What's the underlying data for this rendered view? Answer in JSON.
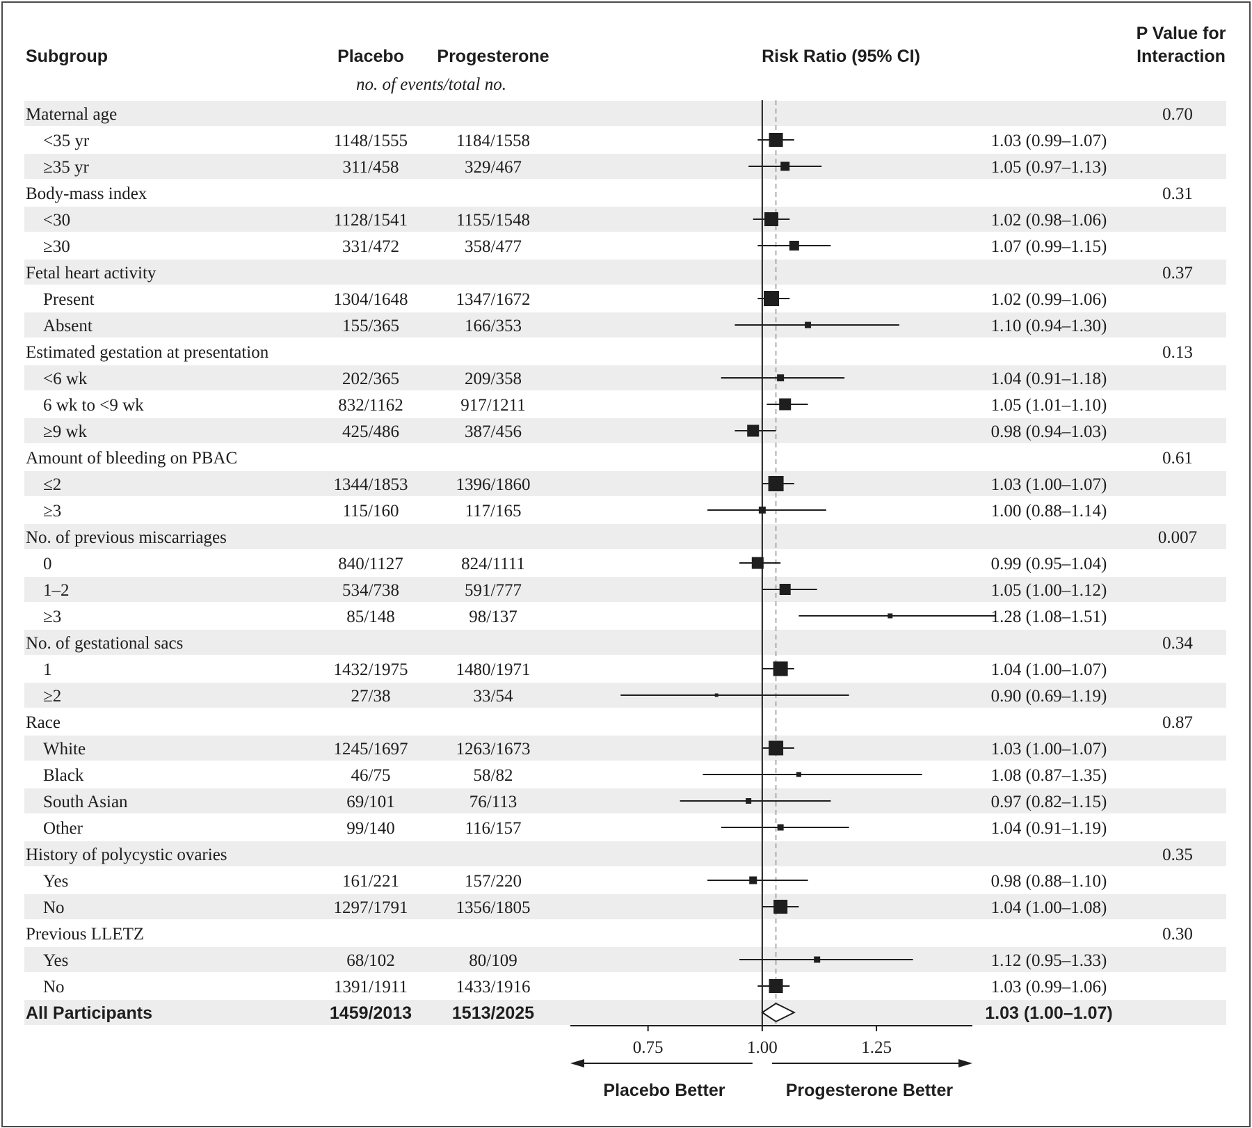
{
  "chart_data": {
    "type": "forest",
    "header": {
      "subgroup": "Subgroup",
      "placebo": "Placebo",
      "progesterone": "Progesterone",
      "events_note": "no. of events/total no.",
      "risk_ratio": "Risk Ratio (95% CI)",
      "p_value_line1": "P Value for",
      "p_value_line2": "Interaction"
    },
    "x_axis": {
      "min": 0.58,
      "max": 1.46,
      "reference": 1.0,
      "dashed_reference": 1.03,
      "ticks": [
        {
          "value": 0.75,
          "label": "0.75"
        },
        {
          "value": 1.0,
          "label": "1.00"
        },
        {
          "value": 1.25,
          "label": "1.25"
        }
      ],
      "left_label": "Placebo Better",
      "right_label": "Progesterone Better"
    },
    "rows": [
      {
        "kind": "group",
        "label": "Maternal age",
        "p": "0.70"
      },
      {
        "kind": "sub",
        "label": "<35 yr",
        "placebo": "1148/1555",
        "progesterone": "1184/1558",
        "rr": 1.03,
        "lo": 0.99,
        "hi": 1.07,
        "ci_text": "1.03 (0.99–1.07)",
        "size": 20
      },
      {
        "kind": "sub",
        "label": "≥35 yr",
        "placebo": "311/458",
        "progesterone": "329/467",
        "rr": 1.05,
        "lo": 0.97,
        "hi": 1.13,
        "ci_text": "1.05 (0.97–1.13)",
        "size": 13
      },
      {
        "kind": "group",
        "label": "Body-mass index",
        "p": "0.31"
      },
      {
        "kind": "sub",
        "label": "<30",
        "placebo": "1128/1541",
        "progesterone": "1155/1548",
        "rr": 1.02,
        "lo": 0.98,
        "hi": 1.06,
        "ci_text": "1.02 (0.98–1.06)",
        "size": 20
      },
      {
        "kind": "sub",
        "label": "≥30",
        "placebo": "331/472",
        "progesterone": "358/477",
        "rr": 1.07,
        "lo": 0.99,
        "hi": 1.15,
        "ci_text": "1.07 (0.99–1.15)",
        "size": 14
      },
      {
        "kind": "group",
        "label": "Fetal heart activity",
        "p": "0.37"
      },
      {
        "kind": "sub",
        "label": "Present",
        "placebo": "1304/1648",
        "progesterone": "1347/1672",
        "rr": 1.02,
        "lo": 0.99,
        "hi": 1.06,
        "ci_text": "1.02 (0.99–1.06)",
        "size": 22
      },
      {
        "kind": "sub",
        "label": "Absent",
        "placebo": "155/365",
        "progesterone": "166/353",
        "rr": 1.1,
        "lo": 0.94,
        "hi": 1.3,
        "ci_text": "1.10 (0.94–1.30)",
        "size": 9
      },
      {
        "kind": "group",
        "label": "Estimated gestation at presentation",
        "p": "0.13"
      },
      {
        "kind": "sub",
        "label": "<6 wk",
        "placebo": "202/365",
        "progesterone": "209/358",
        "rr": 1.04,
        "lo": 0.91,
        "hi": 1.18,
        "ci_text": "1.04 (0.91–1.18)",
        "size": 10
      },
      {
        "kind": "sub",
        "label": "6 wk to <9 wk",
        "placebo": "832/1162",
        "progesterone": "917/1211",
        "rr": 1.05,
        "lo": 1.01,
        "hi": 1.1,
        "ci_text": "1.05 (1.01–1.10)",
        "size": 17
      },
      {
        "kind": "sub",
        "label": "≥9 wk",
        "placebo": "425/486",
        "progesterone": "387/456",
        "rr": 0.98,
        "lo": 0.94,
        "hi": 1.03,
        "ci_text": "0.98 (0.94–1.03)",
        "size": 17
      },
      {
        "kind": "group",
        "label": "Amount of bleeding on PBAC",
        "p": "0.61"
      },
      {
        "kind": "sub",
        "label": "≤2",
        "placebo": "1344/1853",
        "progesterone": "1396/1860",
        "rr": 1.03,
        "lo": 1.0,
        "hi": 1.07,
        "ci_text": "1.03 (1.00–1.07)",
        "size": 22
      },
      {
        "kind": "sub",
        "label": "≥3",
        "placebo": "115/160",
        "progesterone": "117/165",
        "rr": 1.0,
        "lo": 0.88,
        "hi": 1.14,
        "ci_text": "1.00 (0.88–1.14)",
        "size": 10
      },
      {
        "kind": "group",
        "label": "No. of previous miscarriages",
        "p": "0.007"
      },
      {
        "kind": "sub",
        "label": "0",
        "placebo": "840/1127",
        "progesterone": "824/1111",
        "rr": 0.99,
        "lo": 0.95,
        "hi": 1.04,
        "ci_text": "0.99 (0.95–1.04)",
        "size": 17
      },
      {
        "kind": "sub",
        "label": "1–2",
        "placebo": "534/738",
        "progesterone": "591/777",
        "rr": 1.05,
        "lo": 1.0,
        "hi": 1.12,
        "ci_text": "1.05 (1.00–1.12)",
        "size": 16
      },
      {
        "kind": "sub",
        "label": "≥3",
        "placebo": "85/148",
        "progesterone": "98/137",
        "rr": 1.28,
        "lo": 1.08,
        "hi": 1.51,
        "ci_text": "1.28 (1.08–1.51)",
        "size": 7
      },
      {
        "kind": "group",
        "label": "No. of gestational sacs",
        "p": "0.34"
      },
      {
        "kind": "sub",
        "label": "1",
        "placebo": "1432/1975",
        "progesterone": "1480/1971",
        "rr": 1.04,
        "lo": 1.0,
        "hi": 1.07,
        "ci_text": "1.04 (1.00–1.07)",
        "size": 21
      },
      {
        "kind": "sub",
        "label": "≥2",
        "placebo": "27/38",
        "progesterone": "33/54",
        "rr": 0.9,
        "lo": 0.69,
        "hi": 1.19,
        "ci_text": "0.90 (0.69–1.19)",
        "size": 5
      },
      {
        "kind": "group",
        "label": "Race",
        "p": "0.87"
      },
      {
        "kind": "sub",
        "label": "White",
        "placebo": "1245/1697",
        "progesterone": "1263/1673",
        "rr": 1.03,
        "lo": 1.0,
        "hi": 1.07,
        "ci_text": "1.03 (1.00–1.07)",
        "size": 21
      },
      {
        "kind": "sub",
        "label": "Black",
        "placebo": "46/75",
        "progesterone": "58/82",
        "rr": 1.08,
        "lo": 0.87,
        "hi": 1.35,
        "ci_text": "1.08 (0.87–1.35)",
        "size": 7
      },
      {
        "kind": "sub",
        "label": "South Asian",
        "placebo": "69/101",
        "progesterone": "76/113",
        "rr": 0.97,
        "lo": 0.82,
        "hi": 1.15,
        "ci_text": "0.97 (0.82–1.15)",
        "size": 8
      },
      {
        "kind": "sub",
        "label": "Other",
        "placebo": "99/140",
        "progesterone": "116/157",
        "rr": 1.04,
        "lo": 0.91,
        "hi": 1.19,
        "ci_text": "1.04 (0.91–1.19)",
        "size": 9
      },
      {
        "kind": "group",
        "label": "History of polycystic ovaries",
        "p": "0.35"
      },
      {
        "kind": "sub",
        "label": "Yes",
        "placebo": "161/221",
        "progesterone": "157/220",
        "rr": 0.98,
        "lo": 0.88,
        "hi": 1.1,
        "ci_text": "0.98 (0.88–1.10)",
        "size": 11
      },
      {
        "kind": "sub",
        "label": "No",
        "placebo": "1297/1791",
        "progesterone": "1356/1805",
        "rr": 1.04,
        "lo": 1.0,
        "hi": 1.08,
        "ci_text": "1.04 (1.00–1.08)",
        "size": 20
      },
      {
        "kind": "group",
        "label": "Previous LLETZ",
        "p": "0.30"
      },
      {
        "kind": "sub",
        "label": "Yes",
        "placebo": "68/102",
        "progesterone": "80/109",
        "rr": 1.12,
        "lo": 0.95,
        "hi": 1.33,
        "ci_text": "1.12 (0.95–1.33)",
        "size": 9
      },
      {
        "kind": "sub",
        "label": "No",
        "placebo": "1391/1911",
        "progesterone": "1433/1916",
        "rr": 1.03,
        "lo": 0.99,
        "hi": 1.06,
        "ci_text": "1.03 (0.99–1.06)",
        "size": 20
      },
      {
        "kind": "total",
        "label": "All Participants",
        "placebo": "1459/2013",
        "progesterone": "1513/2025",
        "rr": 1.03,
        "lo": 1.0,
        "hi": 1.07,
        "ci_text": "1.03 (1.00–1.07)"
      }
    ]
  }
}
